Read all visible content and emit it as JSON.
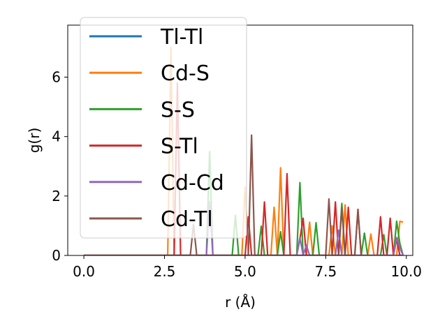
{
  "chart_data": {
    "type": "line",
    "xlabel": "r (Å)",
    "ylabel": "g(r)",
    "xlim": [
      -0.5,
      10.2
    ],
    "ylim": [
      0,
      7.75
    ],
    "xticks": [
      "0.0",
      "2.5",
      "5.0",
      "7.5",
      "10.0"
    ],
    "xtick_values": [
      0,
      2.5,
      5,
      7.5,
      10
    ],
    "yticks": [
      "0",
      "2",
      "4",
      "6"
    ],
    "ytick_values": [
      0,
      2,
      4,
      6
    ],
    "legend_position": "top-left",
    "grid": false,
    "series": [
      {
        "name": "Tl-Tl",
        "color": "#1f77b4",
        "points": [
          [
            0,
            0
          ],
          [
            9.9,
            0
          ]
        ]
      },
      {
        "name": "Cd-S",
        "color": "#ff7f0e",
        "points": [
          [
            0,
            0
          ],
          [
            2.6,
            0
          ],
          [
            2.7,
            7.0
          ],
          [
            2.8,
            0
          ],
          [
            4.9,
            0
          ],
          [
            5.0,
            2.3
          ],
          [
            5.1,
            0
          ],
          [
            5.8,
            0
          ],
          [
            5.9,
            1.62
          ],
          [
            6.0,
            0
          ],
          [
            6.1,
            2.95
          ],
          [
            6.2,
            0
          ],
          [
            6.9,
            0
          ],
          [
            7.0,
            1.12
          ],
          [
            7.1,
            0
          ],
          [
            7.6,
            0
          ],
          [
            7.7,
            1.0
          ],
          [
            7.8,
            0
          ],
          [
            8.0,
            0
          ],
          [
            8.1,
            1.7
          ],
          [
            8.2,
            0
          ],
          [
            8.8,
            0
          ],
          [
            8.9,
            0.72
          ],
          [
            9.0,
            0
          ],
          [
            9.7,
            0
          ],
          [
            9.8,
            1.15
          ],
          [
            9.9,
            1.12
          ]
        ]
      },
      {
        "name": "S-S",
        "color": "#2ca02c",
        "points": [
          [
            0,
            0
          ],
          [
            3.8,
            0
          ],
          [
            3.9,
            3.5
          ],
          [
            4.0,
            0
          ],
          [
            4.6,
            0
          ],
          [
            4.7,
            1.35
          ],
          [
            4.8,
            0
          ],
          [
            5.4,
            0
          ],
          [
            5.5,
            0.98
          ],
          [
            5.6,
            0
          ],
          [
            6.0,
            0
          ],
          [
            6.1,
            0.8
          ],
          [
            6.2,
            0
          ],
          [
            6.6,
            0
          ],
          [
            6.7,
            2.45
          ],
          [
            6.8,
            0
          ],
          [
            7.1,
            0
          ],
          [
            7.2,
            1.1
          ],
          [
            7.3,
            0
          ],
          [
            7.9,
            0
          ],
          [
            8.0,
            1.75
          ],
          [
            8.1,
            0
          ],
          [
            8.6,
            0
          ],
          [
            8.7,
            0.75
          ],
          [
            8.8,
            0
          ],
          [
            9.2,
            0
          ],
          [
            9.3,
            0.7
          ],
          [
            9.4,
            0
          ],
          [
            9.6,
            0
          ],
          [
            9.7,
            1.15
          ],
          [
            9.8,
            0.4
          ],
          [
            9.9,
            0
          ]
        ]
      },
      {
        "name": "S-Tl",
        "color": "#d62728",
        "points": [
          [
            0,
            0
          ],
          [
            2.8,
            0
          ],
          [
            2.9,
            5.8
          ],
          [
            3.0,
            0
          ],
          [
            5.0,
            0
          ],
          [
            5.1,
            1.3
          ],
          [
            5.2,
            0
          ],
          [
            5.5,
            0
          ],
          [
            5.6,
            1.8
          ],
          [
            5.7,
            0
          ],
          [
            6.2,
            0
          ],
          [
            6.3,
            2.75
          ],
          [
            6.4,
            0
          ],
          [
            6.6,
            0
          ],
          [
            6.7,
            0.55
          ],
          [
            6.8,
            1.25
          ],
          [
            6.9,
            0
          ],
          [
            7.7,
            0
          ],
          [
            7.8,
            1.8
          ],
          [
            7.9,
            0
          ],
          [
            8.1,
            0
          ],
          [
            8.2,
            1.62
          ],
          [
            8.3,
            0
          ],
          [
            8.4,
            0
          ],
          [
            8.5,
            1.55
          ],
          [
            8.6,
            0
          ],
          [
            9.1,
            0
          ],
          [
            9.2,
            1.3
          ],
          [
            9.3,
            0
          ],
          [
            9.4,
            0
          ],
          [
            9.5,
            1.25
          ],
          [
            9.6,
            0
          ],
          [
            9.7,
            0.55
          ],
          [
            9.8,
            0
          ]
        ]
      },
      {
        "name": "Cd-Cd",
        "color": "#9467bd",
        "points": [
          [
            0,
            0
          ],
          [
            3.8,
            0
          ],
          [
            3.9,
            1.8
          ],
          [
            4.0,
            0
          ],
          [
            6.6,
            0
          ],
          [
            6.7,
            0.6
          ],
          [
            6.8,
            0
          ],
          [
            6.9,
            0.35
          ],
          [
            7.0,
            0
          ],
          [
            7.8,
            0
          ],
          [
            7.9,
            0.85
          ],
          [
            8.0,
            0
          ],
          [
            9.6,
            0
          ],
          [
            9.7,
            0.6
          ],
          [
            9.8,
            0.25
          ],
          [
            9.9,
            0
          ]
        ]
      },
      {
        "name": "Cd-Tl",
        "color": "#8c564b",
        "points": [
          [
            0,
            0
          ],
          [
            3.3,
            0
          ],
          [
            3.4,
            1.05
          ],
          [
            3.5,
            0
          ],
          [
            5.1,
            0
          ],
          [
            5.2,
            4.05
          ],
          [
            5.3,
            0
          ],
          [
            7.5,
            0
          ],
          [
            7.6,
            1.9
          ],
          [
            7.7,
            0
          ],
          [
            7.9,
            0
          ],
          [
            8.0,
            1.6
          ],
          [
            8.1,
            0
          ],
          [
            8.4,
            0
          ],
          [
            8.5,
            1.5
          ],
          [
            8.6,
            0
          ]
        ]
      }
    ]
  }
}
